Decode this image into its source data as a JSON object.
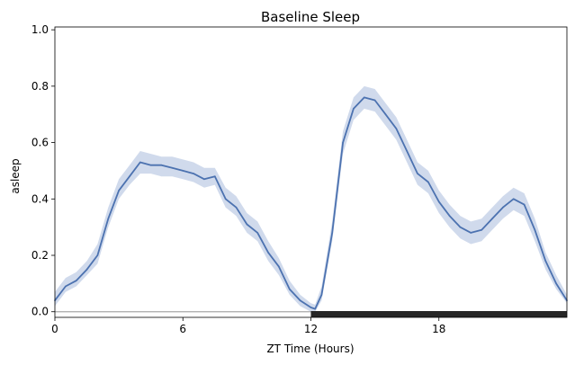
{
  "chart_data": {
    "type": "line",
    "title": "Baseline Sleep",
    "xlabel": "ZT Time (Hours)",
    "ylabel": "asleep",
    "xlim": [
      0,
      24
    ],
    "ylim": [
      -0.02,
      1.01
    ],
    "xticks": [
      0,
      6,
      12,
      18
    ],
    "xtick_labels": [
      "0",
      "6",
      "12",
      "18"
    ],
    "yticks": [
      0.0,
      0.2,
      0.4,
      0.6,
      0.8,
      1.0
    ],
    "ytick_labels": [
      "0.0",
      "0.2",
      "0.4",
      "0.6",
      "0.8",
      "1.0"
    ],
    "grid": false,
    "legend": "none",
    "colors": {
      "line": "#4c72b0",
      "band": "#b0c2e0",
      "dark_bar": "#262626",
      "baseline": "#aaaaaa"
    },
    "light_dark": {
      "baseline_y": 0.0,
      "light_phase": [
        0,
        12
      ],
      "dark_phase": [
        12,
        24
      ]
    },
    "series": [
      {
        "name": "asleep",
        "x": [
          0,
          0.5,
          1,
          1.5,
          2,
          2.5,
          3,
          3.5,
          4,
          4.5,
          5,
          5.5,
          6,
          6.5,
          7,
          7.5,
          8,
          8.5,
          9,
          9.5,
          10,
          10.5,
          11,
          11.5,
          12,
          12.2,
          12.5,
          13,
          13.5,
          14,
          14.5,
          15,
          15.5,
          16,
          16.5,
          17,
          17.5,
          18,
          18.5,
          19,
          19.5,
          20,
          20.5,
          21,
          21.5,
          22,
          22.5,
          23,
          23.5,
          24
        ],
        "y": [
          0.04,
          0.09,
          0.11,
          0.15,
          0.2,
          0.33,
          0.43,
          0.48,
          0.53,
          0.52,
          0.52,
          0.51,
          0.5,
          0.49,
          0.47,
          0.48,
          0.4,
          0.37,
          0.31,
          0.28,
          0.21,
          0.16,
          0.08,
          0.04,
          0.015,
          0.01,
          0.06,
          0.28,
          0.6,
          0.72,
          0.76,
          0.75,
          0.7,
          0.65,
          0.57,
          0.49,
          0.46,
          0.39,
          0.34,
          0.3,
          0.28,
          0.29,
          0.33,
          0.37,
          0.4,
          0.38,
          0.29,
          0.18,
          0.1,
          0.04
        ],
        "lower": [
          0.02,
          0.07,
          0.09,
          0.13,
          0.17,
          0.3,
          0.4,
          0.45,
          0.49,
          0.49,
          0.48,
          0.48,
          0.47,
          0.46,
          0.44,
          0.45,
          0.37,
          0.34,
          0.28,
          0.25,
          0.18,
          0.13,
          0.06,
          0.02,
          0.0,
          0.0,
          0.04,
          0.25,
          0.56,
          0.68,
          0.72,
          0.71,
          0.66,
          0.61,
          0.53,
          0.45,
          0.42,
          0.35,
          0.3,
          0.26,
          0.24,
          0.25,
          0.29,
          0.33,
          0.36,
          0.34,
          0.25,
          0.15,
          0.08,
          0.03
        ],
        "upper": [
          0.07,
          0.12,
          0.14,
          0.18,
          0.24,
          0.37,
          0.47,
          0.52,
          0.57,
          0.56,
          0.55,
          0.55,
          0.54,
          0.53,
          0.51,
          0.51,
          0.44,
          0.41,
          0.35,
          0.32,
          0.25,
          0.19,
          0.11,
          0.06,
          0.03,
          0.025,
          0.09,
          0.32,
          0.64,
          0.76,
          0.8,
          0.79,
          0.74,
          0.69,
          0.61,
          0.53,
          0.5,
          0.43,
          0.38,
          0.34,
          0.32,
          0.33,
          0.37,
          0.41,
          0.44,
          0.42,
          0.33,
          0.21,
          0.13,
          0.06
        ]
      }
    ]
  }
}
